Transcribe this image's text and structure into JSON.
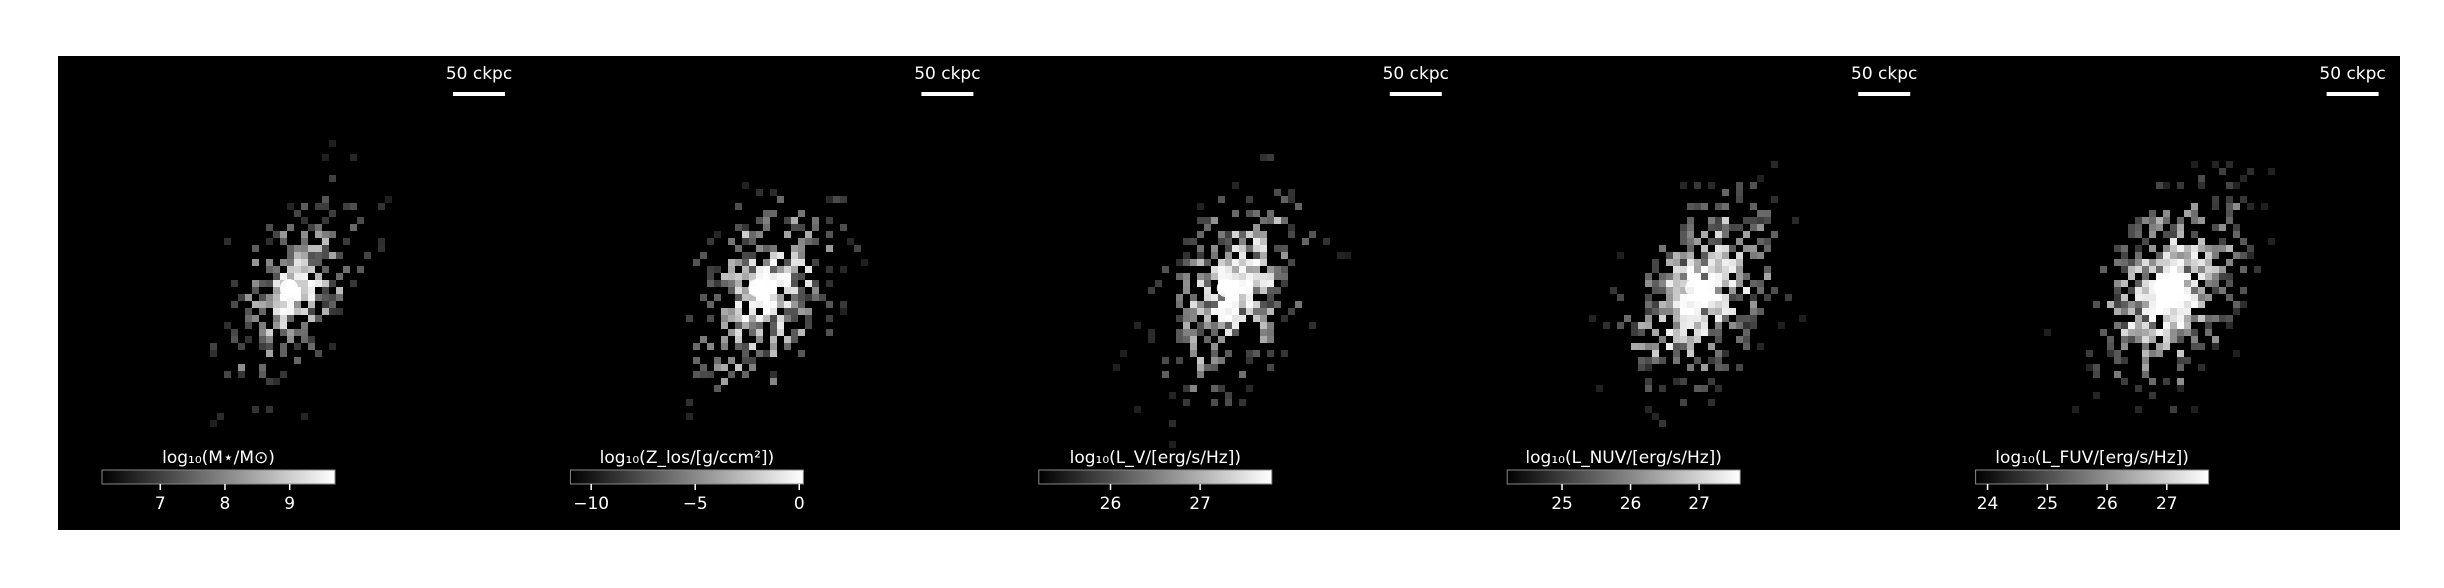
{
  "chart_data": [
    {
      "type": "heatmap",
      "annotation": "50 ckpc",
      "colorbar_label": "log₁₀(M⋆/M⊙)",
      "colormap": "gray",
      "clim": [
        6.1,
        9.7
      ],
      "cticks": [
        7,
        8,
        9
      ]
    },
    {
      "type": "heatmap",
      "annotation": "50 ckpc",
      "colorbar_label": "log₁₀(Z_los/[g/ccm²])",
      "colormap": "gray",
      "clim": [
        -11,
        0.2
      ],
      "cticks": [
        {
          "value": -10,
          "label": "−10"
        },
        {
          "value": -5,
          "label": "−5"
        },
        0
      ]
    },
    {
      "type": "heatmap",
      "annotation": "50 ckpc",
      "colorbar_label": "log₁₀(L_V/[erg/s/Hz])",
      "colormap": "gray",
      "clim": [
        25.2,
        27.8
      ],
      "cticks": [
        26,
        27
      ]
    },
    {
      "type": "heatmap",
      "annotation": "50 ckpc",
      "colorbar_label": "log₁₀(L_NUV/[erg/s/Hz])",
      "colormap": "gray",
      "clim": [
        24.2,
        27.6
      ],
      "cticks": [
        25,
        26,
        27
      ]
    },
    {
      "type": "heatmap",
      "annotation": "50 ckpc",
      "colorbar_label": "log₁₀(L_FUV/[erg/s/Hz])",
      "colormap": "gray",
      "clim": [
        23.8,
        27.7
      ],
      "cticks": [
        24,
        25,
        26,
        27
      ]
    }
  ]
}
